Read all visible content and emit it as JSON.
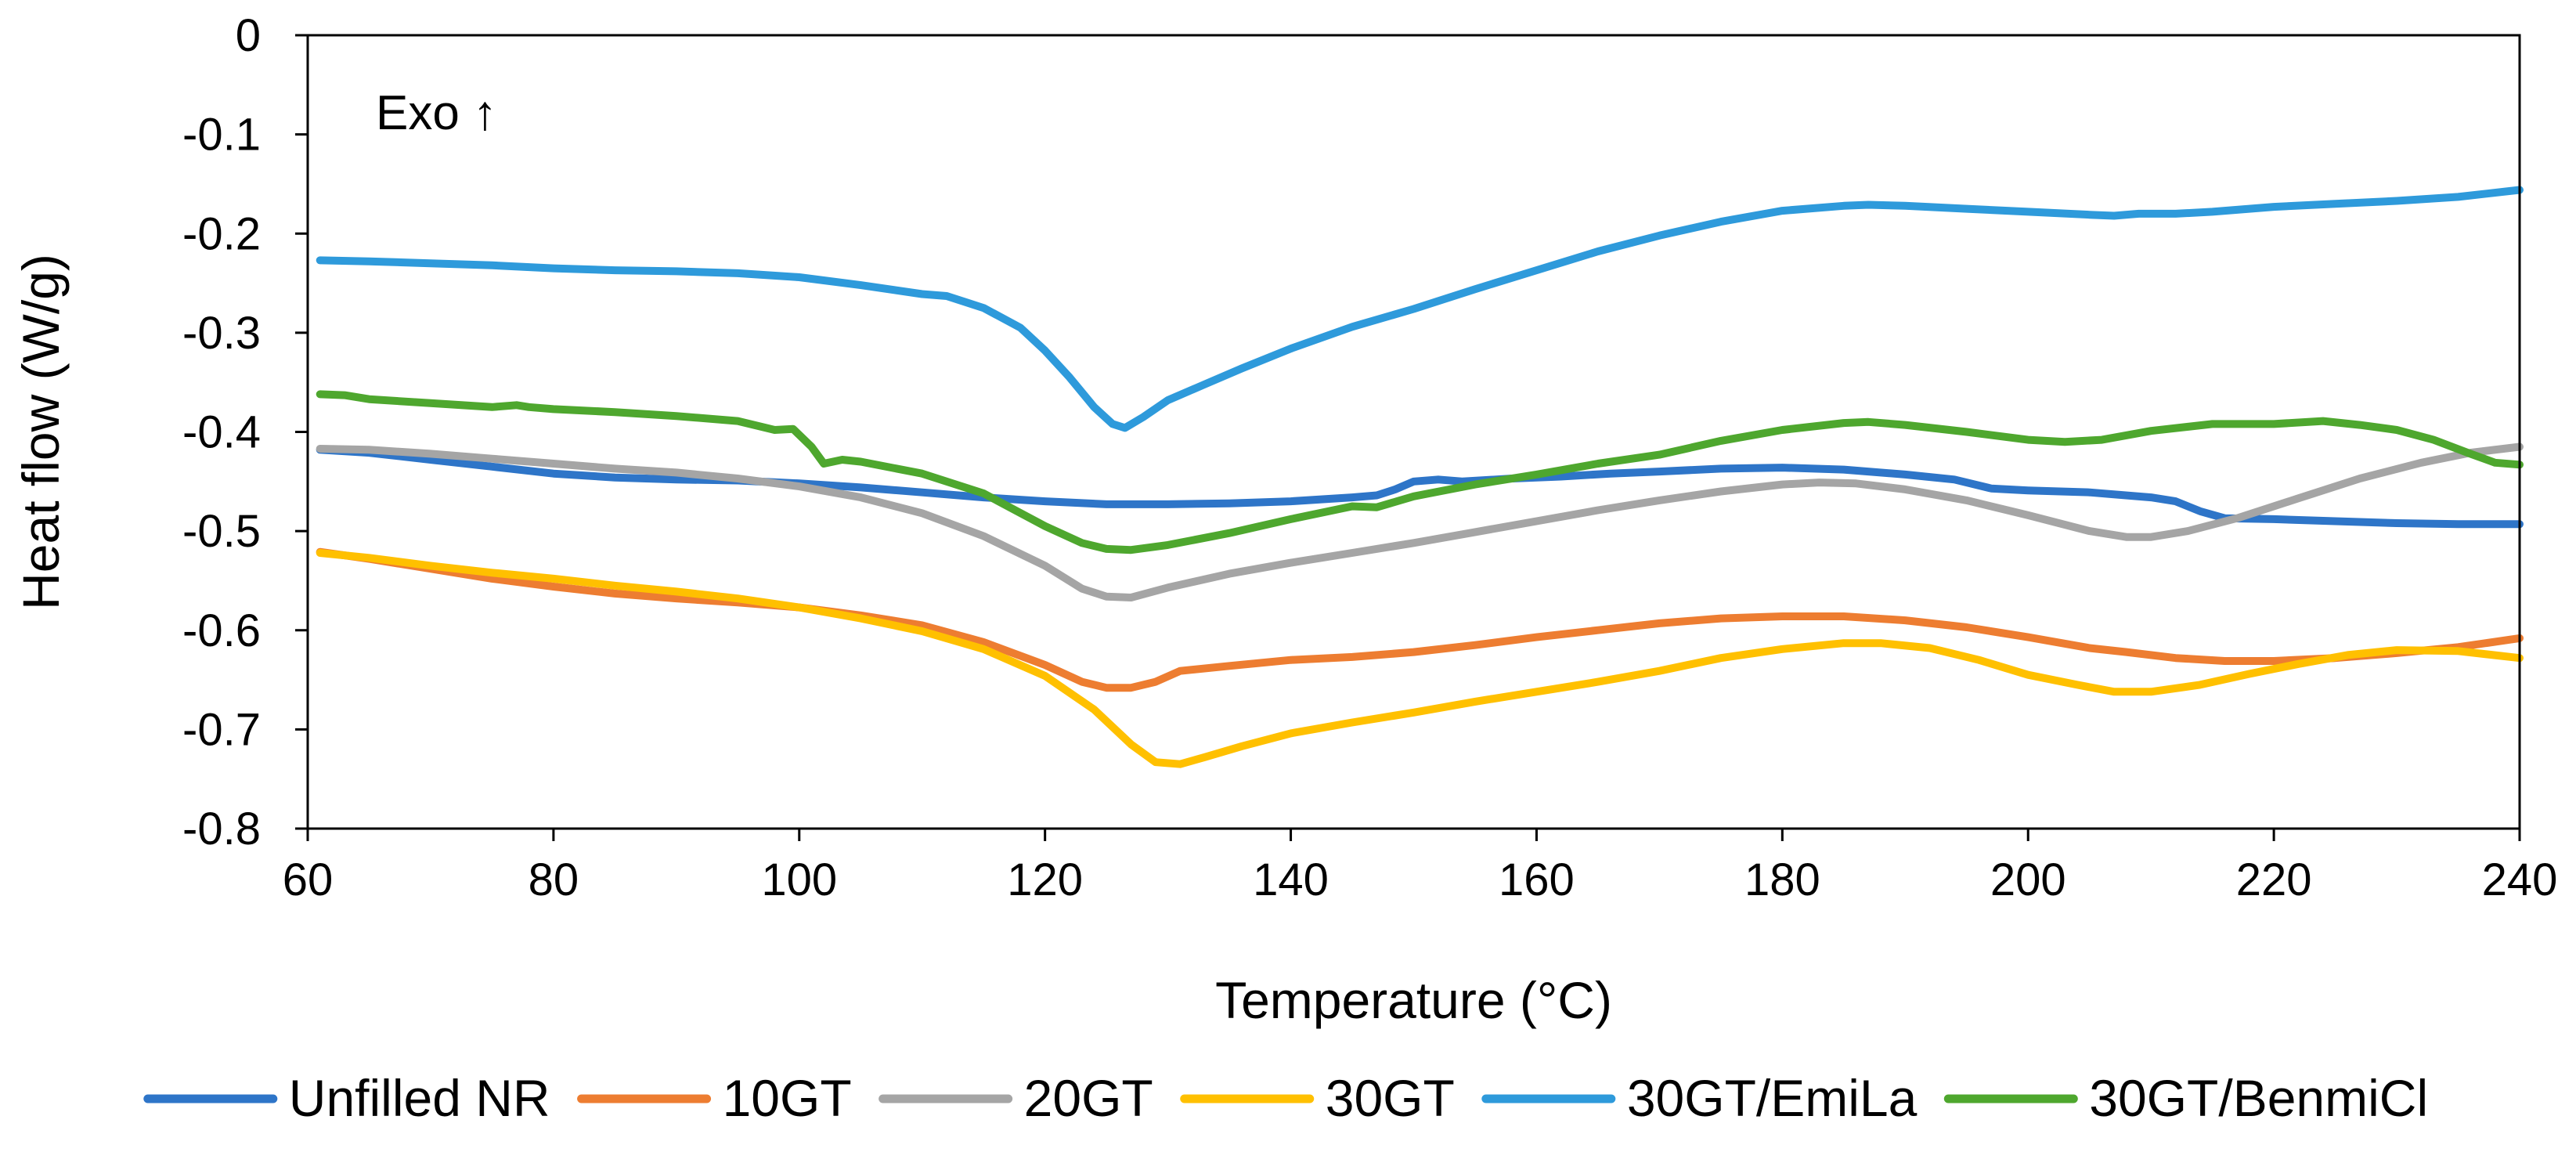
{
  "chart_data": {
    "type": "line",
    "title": "",
    "xlabel": "Temperature (°C)",
    "ylabel": "Heat flow (W/g)",
    "xlim": [
      60,
      240
    ],
    "ylim": [
      -0.8,
      0
    ],
    "xticks": [
      60,
      80,
      100,
      120,
      140,
      160,
      180,
      200,
      220,
      240
    ],
    "yticks": [
      0,
      -0.1,
      -0.2,
      -0.3,
      -0.4,
      -0.5,
      -0.6,
      -0.7,
      -0.8
    ],
    "xtick_labels": [
      "60",
      "80",
      "100",
      "120",
      "140",
      "160",
      "180",
      "200",
      "220",
      "240"
    ],
    "ytick_labels": [
      "0",
      "-0.1",
      "-0.2",
      "-0.3",
      "-0.4",
      "-0.5",
      "-0.6",
      "-0.7",
      "-0.8"
    ],
    "grid": false,
    "legend_position": "bottom",
    "annotation": "Exo ↑",
    "series": [
      {
        "name": "Unfilled NR",
        "color": "#2E75C8",
        "points": [
          [
            61,
            -0.418
          ],
          [
            65,
            -0.421
          ],
          [
            70,
            -0.428
          ],
          [
            75,
            -0.435
          ],
          [
            80,
            -0.442
          ],
          [
            85,
            -0.446
          ],
          [
            90,
            -0.448
          ],
          [
            95,
            -0.449
          ],
          [
            100,
            -0.452
          ],
          [
            105,
            -0.456
          ],
          [
            110,
            -0.461
          ],
          [
            115,
            -0.466
          ],
          [
            120,
            -0.47
          ],
          [
            125,
            -0.473
          ],
          [
            130,
            -0.473
          ],
          [
            135,
            -0.472
          ],
          [
            140,
            -0.47
          ],
          [
            145,
            -0.466
          ],
          [
            147,
            -0.464
          ],
          [
            148.5,
            -0.458
          ],
          [
            150,
            -0.45
          ],
          [
            152,
            -0.448
          ],
          [
            154,
            -0.45
          ],
          [
            158,
            -0.447
          ],
          [
            162,
            -0.445
          ],
          [
            166,
            -0.442
          ],
          [
            170,
            -0.44
          ],
          [
            175,
            -0.437
          ],
          [
            180,
            -0.436
          ],
          [
            185,
            -0.438
          ],
          [
            190,
            -0.443
          ],
          [
            194,
            -0.448
          ],
          [
            197,
            -0.457
          ],
          [
            200,
            -0.459
          ],
          [
            205,
            -0.461
          ],
          [
            210,
            -0.466
          ],
          [
            212,
            -0.47
          ],
          [
            214,
            -0.48
          ],
          [
            216,
            -0.487
          ],
          [
            220,
            -0.488
          ],
          [
            225,
            -0.49
          ],
          [
            230,
            -0.492
          ],
          [
            235,
            -0.493
          ],
          [
            240,
            -0.493
          ]
        ]
      },
      {
        "name": "10GT",
        "color": "#ED7D31",
        "points": [
          [
            61,
            -0.521
          ],
          [
            65,
            -0.528
          ],
          [
            70,
            -0.538
          ],
          [
            75,
            -0.548
          ],
          [
            80,
            -0.556
          ],
          [
            85,
            -0.563
          ],
          [
            90,
            -0.568
          ],
          [
            95,
            -0.572
          ],
          [
            100,
            -0.577
          ],
          [
            105,
            -0.585
          ],
          [
            110,
            -0.595
          ],
          [
            115,
            -0.612
          ],
          [
            120,
            -0.635
          ],
          [
            123,
            -0.652
          ],
          [
            125,
            -0.658
          ],
          [
            127,
            -0.658
          ],
          [
            129,
            -0.652
          ],
          [
            131,
            -0.641
          ],
          [
            135,
            -0.636
          ],
          [
            140,
            -0.63
          ],
          [
            145,
            -0.627
          ],
          [
            150,
            -0.622
          ],
          [
            155,
            -0.615
          ],
          [
            160,
            -0.607
          ],
          [
            165,
            -0.6
          ],
          [
            170,
            -0.593
          ],
          [
            175,
            -0.588
          ],
          [
            180,
            -0.586
          ],
          [
            185,
            -0.586
          ],
          [
            190,
            -0.59
          ],
          [
            195,
            -0.597
          ],
          [
            200,
            -0.607
          ],
          [
            205,
            -0.618
          ],
          [
            208,
            -0.622
          ],
          [
            212,
            -0.628
          ],
          [
            216,
            -0.631
          ],
          [
            220,
            -0.631
          ],
          [
            225,
            -0.628
          ],
          [
            230,
            -0.623
          ],
          [
            235,
            -0.617
          ],
          [
            240,
            -0.608
          ]
        ]
      },
      {
        "name": "20GT",
        "color": "#A5A5A5",
        "points": [
          [
            61,
            -0.417
          ],
          [
            65,
            -0.418
          ],
          [
            70,
            -0.422
          ],
          [
            75,
            -0.427
          ],
          [
            80,
            -0.432
          ],
          [
            85,
            -0.437
          ],
          [
            90,
            -0.441
          ],
          [
            95,
            -0.447
          ],
          [
            100,
            -0.455
          ],
          [
            105,
            -0.466
          ],
          [
            110,
            -0.482
          ],
          [
            115,
            -0.505
          ],
          [
            120,
            -0.535
          ],
          [
            123,
            -0.558
          ],
          [
            125,
            -0.566
          ],
          [
            127,
            -0.567
          ],
          [
            130,
            -0.557
          ],
          [
            135,
            -0.543
          ],
          [
            140,
            -0.532
          ],
          [
            145,
            -0.522
          ],
          [
            150,
            -0.512
          ],
          [
            155,
            -0.501
          ],
          [
            160,
            -0.49
          ],
          [
            165,
            -0.479
          ],
          [
            170,
            -0.469
          ],
          [
            175,
            -0.46
          ],
          [
            180,
            -0.453
          ],
          [
            183,
            -0.451
          ],
          [
            186,
            -0.452
          ],
          [
            190,
            -0.458
          ],
          [
            195,
            -0.469
          ],
          [
            200,
            -0.484
          ],
          [
            205,
            -0.5
          ],
          [
            208,
            -0.506
          ],
          [
            210,
            -0.506
          ],
          [
            213,
            -0.5
          ],
          [
            217,
            -0.487
          ],
          [
            222,
            -0.467
          ],
          [
            227,
            -0.447
          ],
          [
            232,
            -0.431
          ],
          [
            236,
            -0.421
          ],
          [
            240,
            -0.415
          ]
        ]
      },
      {
        "name": "30GT",
        "color": "#FFC000",
        "points": [
          [
            61,
            -0.522
          ],
          [
            65,
            -0.527
          ],
          [
            70,
            -0.535
          ],
          [
            75,
            -0.542
          ],
          [
            80,
            -0.548
          ],
          [
            85,
            -0.555
          ],
          [
            90,
            -0.561
          ],
          [
            95,
            -0.568
          ],
          [
            100,
            -0.577
          ],
          [
            105,
            -0.588
          ],
          [
            110,
            -0.601
          ],
          [
            115,
            -0.619
          ],
          [
            120,
            -0.646
          ],
          [
            124,
            -0.68
          ],
          [
            127,
            -0.715
          ],
          [
            129,
            -0.733
          ],
          [
            131,
            -0.735
          ],
          [
            133,
            -0.728
          ],
          [
            136,
            -0.717
          ],
          [
            140,
            -0.704
          ],
          [
            145,
            -0.693
          ],
          [
            150,
            -0.683
          ],
          [
            155,
            -0.672
          ],
          [
            160,
            -0.662
          ],
          [
            165,
            -0.652
          ],
          [
            170,
            -0.641
          ],
          [
            175,
            -0.628
          ],
          [
            180,
            -0.619
          ],
          [
            185,
            -0.613
          ],
          [
            188,
            -0.613
          ],
          [
            192,
            -0.618
          ],
          [
            196,
            -0.63
          ],
          [
            200,
            -0.645
          ],
          [
            204,
            -0.655
          ],
          [
            207,
            -0.662
          ],
          [
            210,
            -0.662
          ],
          [
            214,
            -0.655
          ],
          [
            218,
            -0.644
          ],
          [
            222,
            -0.634
          ],
          [
            226,
            -0.625
          ],
          [
            230,
            -0.62
          ],
          [
            235,
            -0.621
          ],
          [
            240,
            -0.628
          ]
        ]
      },
      {
        "name": "30GT/EmiLa",
        "color": "#2E9ADB",
        "points": [
          [
            61,
            -0.227
          ],
          [
            65,
            -0.228
          ],
          [
            70,
            -0.23
          ],
          [
            75,
            -0.232
          ],
          [
            80,
            -0.235
          ],
          [
            85,
            -0.237
          ],
          [
            90,
            -0.238
          ],
          [
            95,
            -0.24
          ],
          [
            100,
            -0.244
          ],
          [
            105,
            -0.252
          ],
          [
            110,
            -0.261
          ],
          [
            112,
            -0.263
          ],
          [
            115,
            -0.275
          ],
          [
            118,
            -0.295
          ],
          [
            120,
            -0.318
          ],
          [
            122,
            -0.345
          ],
          [
            124,
            -0.375
          ],
          [
            125.5,
            -0.392
          ],
          [
            126.5,
            -0.396
          ],
          [
            128,
            -0.385
          ],
          [
            130,
            -0.368
          ],
          [
            133,
            -0.352
          ],
          [
            136,
            -0.336
          ],
          [
            140,
            -0.316
          ],
          [
            145,
            -0.294
          ],
          [
            150,
            -0.276
          ],
          [
            152,
            -0.268
          ],
          [
            155,
            -0.256
          ],
          [
            160,
            -0.237
          ],
          [
            165,
            -0.218
          ],
          [
            170,
            -0.202
          ],
          [
            175,
            -0.188
          ],
          [
            180,
            -0.177
          ],
          [
            185,
            -0.172
          ],
          [
            187,
            -0.171
          ],
          [
            190,
            -0.172
          ],
          [
            195,
            -0.175
          ],
          [
            200,
            -0.178
          ],
          [
            205,
            -0.181
          ],
          [
            207,
            -0.182
          ],
          [
            209,
            -0.18
          ],
          [
            212,
            -0.18
          ],
          [
            215,
            -0.178
          ],
          [
            220,
            -0.173
          ],
          [
            225,
            -0.17
          ],
          [
            230,
            -0.167
          ],
          [
            235,
            -0.163
          ],
          [
            240,
            -0.156
          ]
        ]
      },
      {
        "name": "30GT/BenmiCl",
        "color": "#4EA72E",
        "points": [
          [
            61,
            -0.362
          ],
          [
            63,
            -0.363
          ],
          [
            65,
            -0.367
          ],
          [
            70,
            -0.371
          ],
          [
            75,
            -0.375
          ],
          [
            77,
            -0.373
          ],
          [
            78,
            -0.375
          ],
          [
            80,
            -0.377
          ],
          [
            85,
            -0.38
          ],
          [
            90,
            -0.384
          ],
          [
            95,
            -0.389
          ],
          [
            98,
            -0.398
          ],
          [
            99.5,
            -0.397
          ],
          [
            101,
            -0.415
          ],
          [
            102,
            -0.432
          ],
          [
            103.5,
            -0.428
          ],
          [
            105,
            -0.43
          ],
          [
            110,
            -0.442
          ],
          [
            115,
            -0.462
          ],
          [
            120,
            -0.495
          ],
          [
            123,
            -0.512
          ],
          [
            125,
            -0.518
          ],
          [
            127,
            -0.519
          ],
          [
            130,
            -0.514
          ],
          [
            135,
            -0.502
          ],
          [
            140,
            -0.488
          ],
          [
            145,
            -0.475
          ],
          [
            147,
            -0.476
          ],
          [
            150,
            -0.465
          ],
          [
            155,
            -0.453
          ],
          [
            160,
            -0.443
          ],
          [
            165,
            -0.432
          ],
          [
            170,
            -0.423
          ],
          [
            175,
            -0.409
          ],
          [
            180,
            -0.398
          ],
          [
            185,
            -0.391
          ],
          [
            187,
            -0.39
          ],
          [
            190,
            -0.393
          ],
          [
            195,
            -0.4
          ],
          [
            200,
            -0.408
          ],
          [
            203,
            -0.41
          ],
          [
            206,
            -0.408
          ],
          [
            210,
            -0.399
          ],
          [
            215,
            -0.392
          ],
          [
            220,
            -0.392
          ],
          [
            224,
            -0.389
          ],
          [
            227,
            -0.393
          ],
          [
            230,
            -0.398
          ],
          [
            233,
            -0.408
          ],
          [
            236,
            -0.422
          ],
          [
            238,
            -0.431
          ],
          [
            240,
            -0.433
          ]
        ]
      }
    ]
  }
}
